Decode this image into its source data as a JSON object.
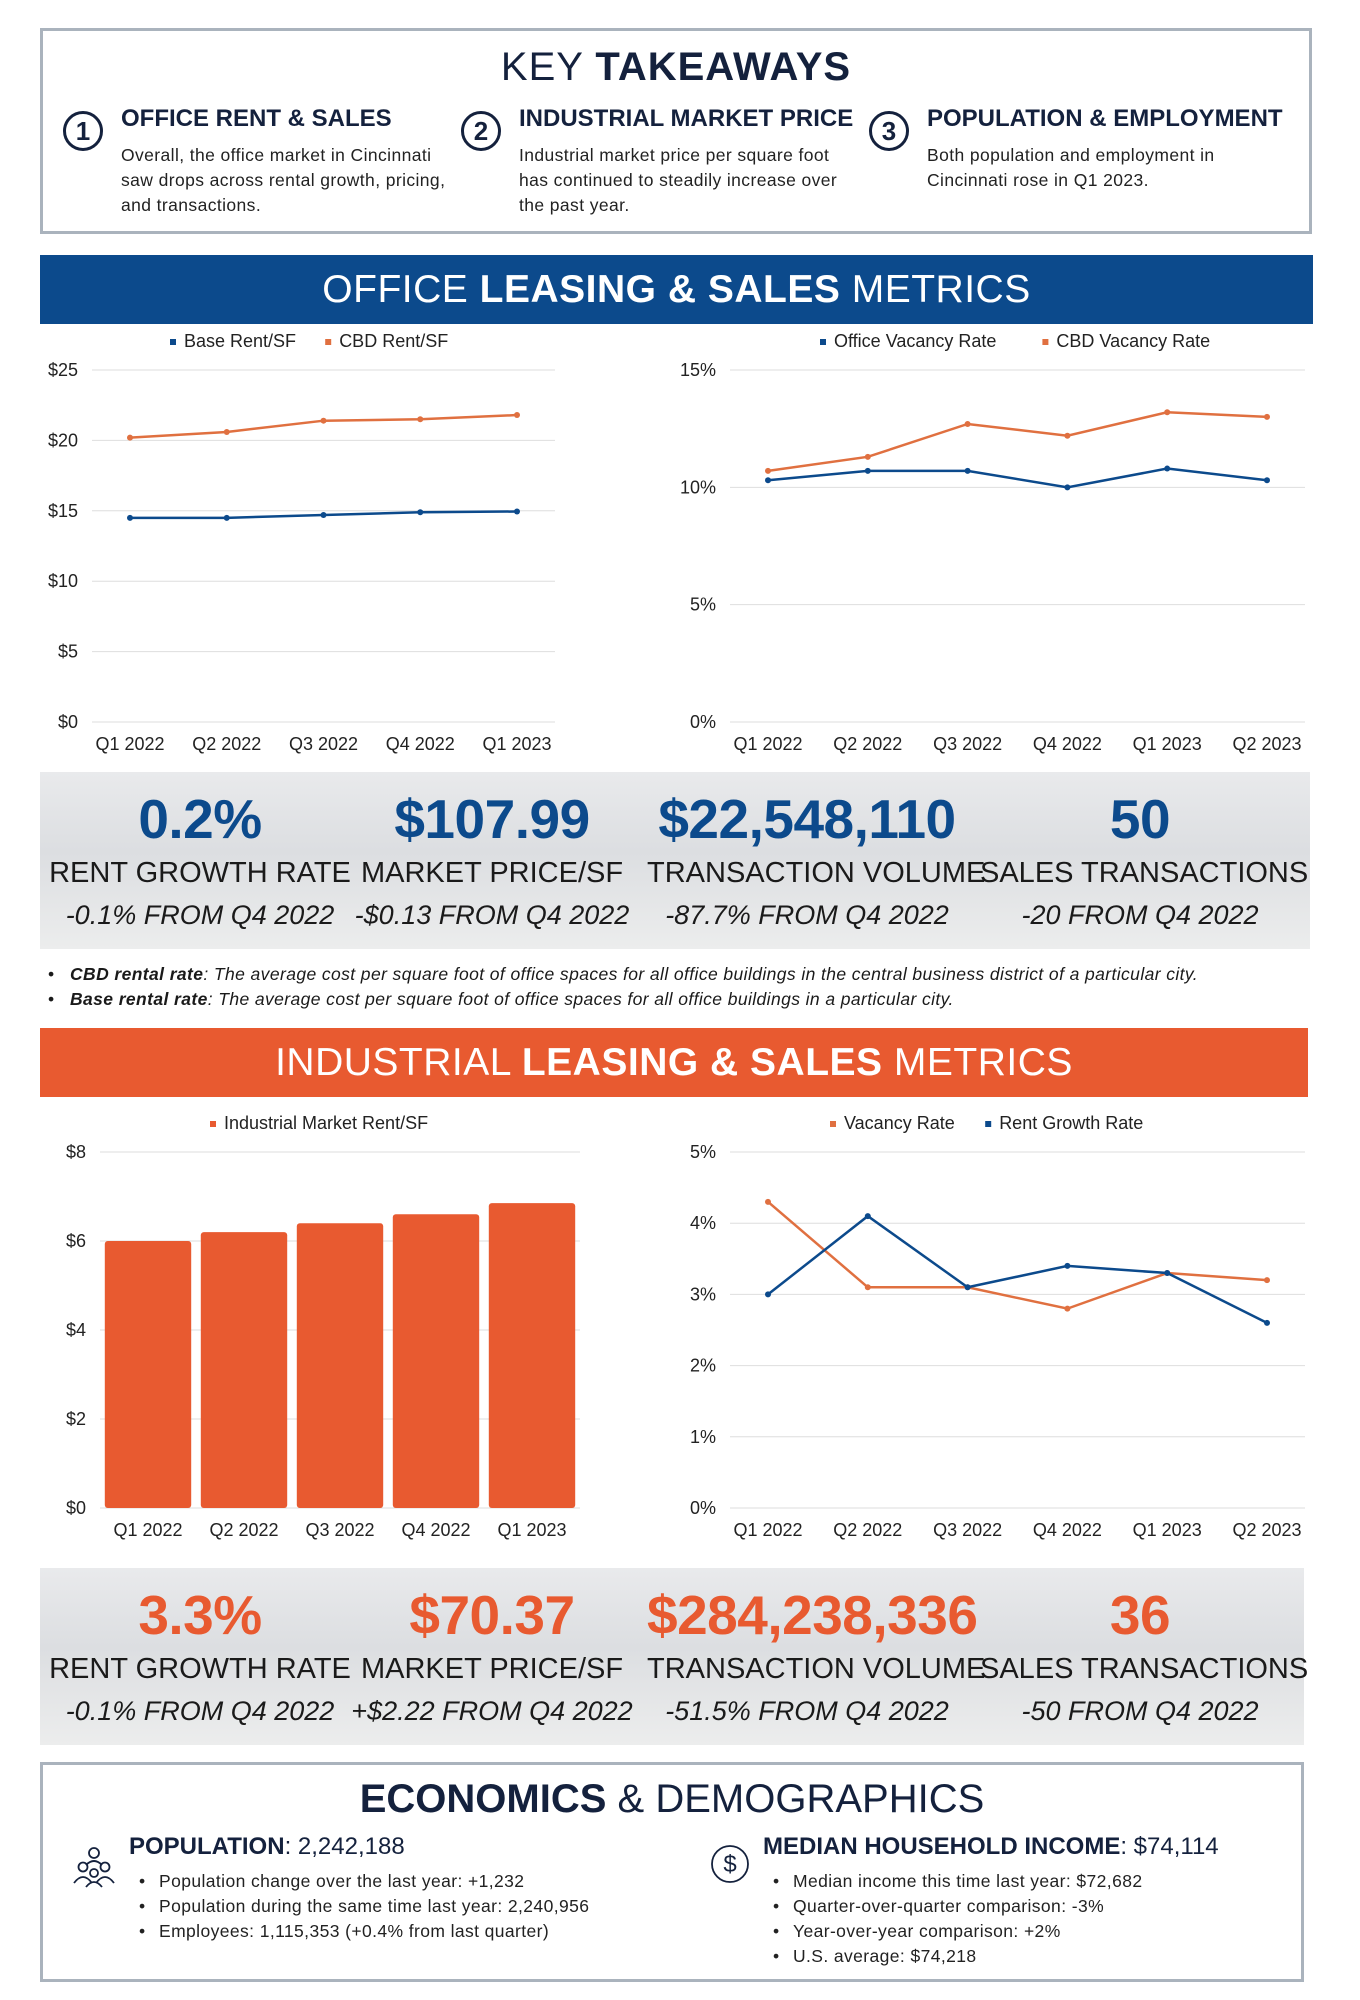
{
  "takeaways": {
    "title_light": "KEY",
    "title_bold": "TAKEAWAYS",
    "items": [
      {
        "num": "1",
        "heading": "OFFICE RENT & SALES",
        "text": "Overall, the office market in Cincinnati saw drops across rental growth, pricing, and transactions."
      },
      {
        "num": "2",
        "heading": "INDUSTRIAL MARKET PRICE",
        "text": "Industrial market price per square foot has continued to steadily increase over the past year."
      },
      {
        "num": "3",
        "heading": "POPULATION & EMPLOYMENT",
        "text": "Both population and employment in Cincinnati rose in Q1 2023."
      }
    ]
  },
  "office_banner": {
    "pre": "OFFICE",
    "bold": "LEASING & SALES",
    "post": "METRICS"
  },
  "industrial_banner": {
    "pre": "INDUSTRIAL",
    "bold": "LEASING & SALES",
    "post": "METRICS"
  },
  "office_stats": [
    {
      "value": "0.2%",
      "label": "RENT GROWTH RATE",
      "change": "-0.1% FROM Q4 2022"
    },
    {
      "value": "$107.99",
      "label": "MARKET PRICE/SF",
      "change": "-$0.13 FROM Q4 2022"
    },
    {
      "value": "$22,548,110",
      "label": "TRANSACTION VOLUME",
      "change": "-87.7% FROM Q4 2022"
    },
    {
      "value": "50",
      "label": "SALES TRANSACTIONS",
      "change": "-20 FROM Q4 2022"
    }
  ],
  "industrial_stats": [
    {
      "value": "3.3%",
      "label": "RENT GROWTH RATE",
      "change": "-0.1% FROM Q4 2022"
    },
    {
      "value": "$70.37",
      "label": "MARKET PRICE/SF",
      "change": "+$2.22 FROM Q4 2022"
    },
    {
      "value": "$284,238,336",
      "label": "TRANSACTION VOLUME",
      "change": "-51.5% FROM Q4 2022"
    },
    {
      "value": "36",
      "label": "SALES TRANSACTIONS",
      "change": "-50 FROM Q4 2022"
    }
  ],
  "definitions": [
    {
      "term": "CBD rental rate",
      "text": ": The average cost per square foot of office spaces for all office buildings in the central business district of a particular city."
    },
    {
      "term": "Base rental rate",
      "text": ": The average cost per square foot of office spaces for all office buildings in a particular city."
    }
  ],
  "economics": {
    "title_bold": "ECONOMICS",
    "title_light": "& DEMOGRAPHICS",
    "population": {
      "heading": "POPULATION",
      "value": ": 2,242,188",
      "items": [
        "Population change over the last year: +1,232",
        "Population during the same time last year: 2,240,956",
        "Employees: 1,115,353 (+0.4% from last quarter)"
      ]
    },
    "income": {
      "heading": "MEDIAN HOUSEHOLD INCOME",
      "value": ": $74,114",
      "items": [
        "Median income this time last year: $72,682",
        "Quarter-over-quarter comparison: -3%",
        "Year-over-year comparison: +2%",
        "U.S. average: $74,218"
      ]
    }
  },
  "colors": {
    "navy": "#0c4a8c",
    "orange": "#e85a30",
    "dark": "#14213d"
  },
  "chart_data": [
    {
      "type": "line",
      "categories": [
        "Q1 2022",
        "Q2 2022",
        "Q3 2022",
        "Q4 2022",
        "Q1 2023"
      ],
      "ylim": [
        0,
        25
      ],
      "yticks": [
        "$0",
        "$5",
        "$10",
        "$15",
        "$20",
        "$25"
      ],
      "legend": "top",
      "series": [
        {
          "name": "Base Rent/SF",
          "color": "#0c4a8c",
          "values": [
            14.5,
            14.5,
            14.7,
            14.9,
            14.95
          ]
        },
        {
          "name": "CBD Rent/SF",
          "color": "#e07040",
          "values": [
            20.2,
            20.6,
            21.4,
            21.5,
            21.8
          ]
        }
      ]
    },
    {
      "type": "line",
      "categories": [
        "Q1 2022",
        "Q2 2022",
        "Q3 2022",
        "Q4 2022",
        "Q1 2023",
        "Q2 2023"
      ],
      "ylim": [
        0,
        15
      ],
      "yticks": [
        "0%",
        "5%",
        "10%",
        "15%"
      ],
      "legend": "top",
      "series": [
        {
          "name": "Office Vacancy Rate",
          "color": "#0c4a8c",
          "values": [
            10.3,
            10.7,
            10.7,
            10.0,
            10.8,
            10.3
          ]
        },
        {
          "name": "CBD Vacancy Rate",
          "color": "#e07040",
          "values": [
            10.7,
            11.3,
            12.7,
            12.2,
            13.2,
            13.0
          ]
        }
      ]
    },
    {
      "type": "bar",
      "categories": [
        "Q1 2022",
        "Q2 2022",
        "Q3 2022",
        "Q4 2022",
        "Q1 2023"
      ],
      "ylim": [
        0,
        8
      ],
      "yticks": [
        "$0",
        "$2",
        "$4",
        "$6",
        "$8"
      ],
      "legend": "top",
      "series": [
        {
          "name": "Industrial Market Rent/SF",
          "color": "#e85a30",
          "values": [
            6.0,
            6.2,
            6.4,
            6.6,
            6.85
          ]
        }
      ]
    },
    {
      "type": "line",
      "categories": [
        "Q1 2022",
        "Q2 2022",
        "Q3 2022",
        "Q4 2022",
        "Q1 2023",
        "Q2 2023"
      ],
      "ylim": [
        0,
        5
      ],
      "yticks": [
        "0%",
        "1%",
        "2%",
        "3%",
        "4%",
        "5%"
      ],
      "legend": "top",
      "series": [
        {
          "name": "Vacancy Rate",
          "color": "#e07040",
          "values": [
            4.3,
            3.1,
            3.1,
            2.8,
            3.3,
            3.2
          ]
        },
        {
          "name": "Rent Growth Rate",
          "color": "#0c4a8c",
          "values": [
            3.0,
            4.1,
            3.1,
            3.4,
            3.3,
            2.6
          ]
        }
      ]
    }
  ]
}
